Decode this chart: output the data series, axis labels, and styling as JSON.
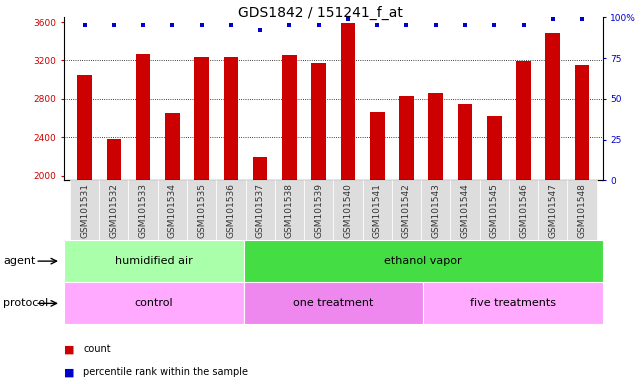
{
  "title": "GDS1842 / 151241_f_at",
  "samples": [
    "GSM101531",
    "GSM101532",
    "GSM101533",
    "GSM101534",
    "GSM101535",
    "GSM101536",
    "GSM101537",
    "GSM101538",
    "GSM101539",
    "GSM101540",
    "GSM101541",
    "GSM101542",
    "GSM101543",
    "GSM101544",
    "GSM101545",
    "GSM101546",
    "GSM101547",
    "GSM101548"
  ],
  "counts": [
    3050,
    2380,
    3270,
    2650,
    3240,
    3240,
    2190,
    3260,
    3170,
    3590,
    2660,
    2830,
    2860,
    2750,
    2620,
    3190,
    3490,
    3150
  ],
  "percentiles": [
    95,
    95,
    95,
    95,
    95,
    95,
    92,
    95,
    95,
    99,
    95,
    95,
    95,
    95,
    95,
    95,
    99,
    99
  ],
  "ylim_left": [
    1950,
    3650
  ],
  "ylim_right": [
    0,
    100
  ],
  "yticks_left": [
    2000,
    2400,
    2800,
    3200,
    3600
  ],
  "yticks_right": [
    0,
    25,
    50,
    75,
    100
  ],
  "bar_color": "#cc0000",
  "percentile_color": "#0000cc",
  "agent_groups": [
    {
      "label": "humidified air",
      "start": 0,
      "end": 6,
      "color": "#aaffaa"
    },
    {
      "label": "ethanol vapor",
      "start": 6,
      "end": 18,
      "color": "#44dd44"
    }
  ],
  "protocol_groups": [
    {
      "label": "control",
      "start": 0,
      "end": 6,
      "color": "#ffaaff"
    },
    {
      "label": "one treatment",
      "start": 6,
      "end": 12,
      "color": "#ee88ee"
    },
    {
      "label": "five treatments",
      "start": 12,
      "end": 18,
      "color": "#ffaaff"
    }
  ],
  "agent_label": "agent",
  "protocol_label": "protocol",
  "legend_count": "count",
  "legend_percentile": "percentile rank within the sample",
  "bar_width": 0.5,
  "bg_color": "#ffffff",
  "tick_bg_color": "#dddddd",
  "title_fontsize": 10,
  "tick_fontsize": 6.5,
  "label_fontsize": 8,
  "group_fontsize": 8
}
